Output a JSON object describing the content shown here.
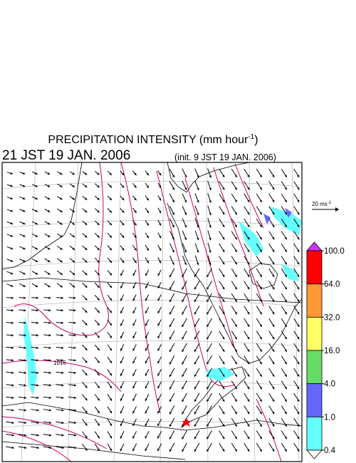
{
  "header": {
    "title": "PRECIPITATION INTENSITY (mm hour",
    "title_exponent": "-1",
    "title_close": ")",
    "valid_time": "21 JST 19 JAN. 2006",
    "init_time": "(init. 9 JST 19 JAN. 2006)"
  },
  "vector_key": {
    "label": "20 ms",
    "exponent": "-1"
  },
  "contour_label": "1016",
  "colorbar": {
    "levels": [
      {
        "value": 100,
        "label": "100.0"
      },
      {
        "value": 64,
        "label": "64.0"
      },
      {
        "value": 32,
        "label": "32.0"
      },
      {
        "value": 16,
        "label": "16.0"
      },
      {
        "value": 4,
        "label": "4.0"
      },
      {
        "value": 1,
        "label": "1.0"
      },
      {
        "value": 0.4,
        "label": "0.4"
      }
    ],
    "colors": [
      "#cc33ff",
      "#ff0000",
      "#ff9933",
      "#ffff66",
      "#66dd66",
      "#6666ff",
      "#66ffff",
      "#ffffff"
    ]
  }
}
